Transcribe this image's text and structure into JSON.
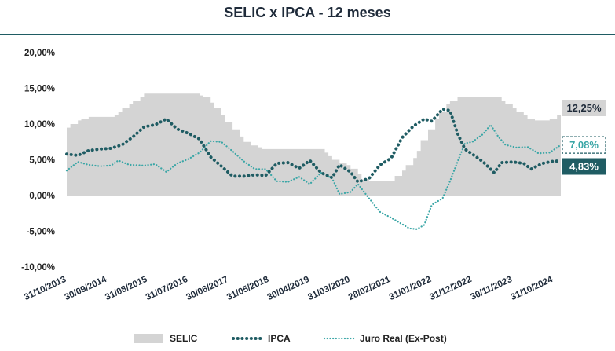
{
  "chart_data": {
    "type": "area",
    "title": "SELIC x IPCA - 12 meses",
    "xlabel": "",
    "ylabel": "",
    "ylim": [
      -10,
      20
    ],
    "ytick_labels": [
      "20,00%",
      "15,00%",
      "10,00%",
      "5,00%",
      "0,00%",
      "-5,00%",
      "-10,00%"
    ],
    "ytick_values": [
      20,
      15,
      10,
      5,
      0,
      -5,
      -10
    ],
    "x_range": [
      "2013-10-31",
      "2024-12-31"
    ],
    "xtick_labels": [
      "31/10/2013",
      "30/09/2014",
      "31/08/2015",
      "31/07/2016",
      "30/06/2017",
      "31/05/2018",
      "30/04/2019",
      "31/03/2020",
      "28/02/2021",
      "31/01/2022",
      "31/12/2022",
      "30/11/2023",
      "31/10/2024"
    ],
    "xtick_dates": [
      "2013-10-31",
      "2014-09-30",
      "2015-08-31",
      "2016-07-31",
      "2017-06-30",
      "2018-05-31",
      "2019-04-30",
      "2020-03-31",
      "2021-02-28",
      "2022-01-31",
      "2022-12-31",
      "2023-11-30",
      "2024-10-31"
    ],
    "grid": false,
    "legend_position": "bottom",
    "series": [
      {
        "name": "SELIC",
        "type": "area",
        "color": "#d4d4d4",
        "points": [
          [
            "2013-10-31",
            9.5
          ],
          [
            "2013-11-30",
            10.0
          ],
          [
            "2014-01-31",
            10.5
          ],
          [
            "2014-02-28",
            10.75
          ],
          [
            "2014-04-30",
            11.0
          ],
          [
            "2014-10-31",
            11.0
          ],
          [
            "2014-11-30",
            11.25
          ],
          [
            "2014-12-31",
            11.75
          ],
          [
            "2015-01-31",
            12.25
          ],
          [
            "2015-03-31",
            12.75
          ],
          [
            "2015-04-30",
            13.25
          ],
          [
            "2015-06-30",
            13.75
          ],
          [
            "2015-07-31",
            14.25
          ],
          [
            "2016-09-30",
            14.25
          ],
          [
            "2016-10-31",
            14.0
          ],
          [
            "2016-11-30",
            13.75
          ],
          [
            "2017-01-31",
            13.0
          ],
          [
            "2017-02-28",
            12.25
          ],
          [
            "2017-04-30",
            11.25
          ],
          [
            "2017-05-31",
            10.25
          ],
          [
            "2017-07-31",
            9.25
          ],
          [
            "2017-09-30",
            8.25
          ],
          [
            "2017-10-31",
            7.5
          ],
          [
            "2017-12-31",
            7.0
          ],
          [
            "2018-02-28",
            6.75
          ],
          [
            "2018-03-31",
            6.5
          ],
          [
            "2019-07-31",
            6.5
          ],
          [
            "2019-08-31",
            6.0
          ],
          [
            "2019-09-30",
            5.5
          ],
          [
            "2019-10-31",
            5.0
          ],
          [
            "2019-12-31",
            4.5
          ],
          [
            "2020-02-29",
            4.25
          ],
          [
            "2020-03-31",
            3.75
          ],
          [
            "2020-05-31",
            3.0
          ],
          [
            "2020-06-30",
            2.25
          ],
          [
            "2020-08-31",
            2.0
          ],
          [
            "2021-02-28",
            2.0
          ],
          [
            "2021-03-31",
            2.75
          ],
          [
            "2021-05-31",
            3.5
          ],
          [
            "2021-06-30",
            4.25
          ],
          [
            "2021-08-31",
            5.25
          ],
          [
            "2021-09-30",
            6.25
          ],
          [
            "2021-10-31",
            7.75
          ],
          [
            "2021-12-31",
            9.25
          ],
          [
            "2022-02-28",
            10.75
          ],
          [
            "2022-03-31",
            11.75
          ],
          [
            "2022-05-31",
            12.75
          ],
          [
            "2022-06-30",
            13.25
          ],
          [
            "2022-08-31",
            13.75
          ],
          [
            "2023-07-31",
            13.75
          ],
          [
            "2023-08-31",
            13.25
          ],
          [
            "2023-09-30",
            12.75
          ],
          [
            "2023-11-30",
            12.25
          ],
          [
            "2023-12-31",
            11.75
          ],
          [
            "2024-02-29",
            11.25
          ],
          [
            "2024-03-31",
            10.75
          ],
          [
            "2024-05-31",
            10.5
          ],
          [
            "2024-08-31",
            10.5
          ],
          [
            "2024-09-30",
            10.75
          ],
          [
            "2024-11-30",
            11.25
          ],
          [
            "2024-12-31",
            12.25
          ]
        ]
      },
      {
        "name": "IPCA",
        "type": "line",
        "style": "dotted-round",
        "color": "#1f5c63",
        "points": [
          [
            "2013-10-31",
            5.8
          ],
          [
            "2014-01-31",
            5.6
          ],
          [
            "2014-04-30",
            6.3
          ],
          [
            "2014-07-31",
            6.5
          ],
          [
            "2014-10-31",
            6.6
          ],
          [
            "2015-01-31",
            7.1
          ],
          [
            "2015-04-30",
            8.2
          ],
          [
            "2015-07-31",
            9.6
          ],
          [
            "2015-10-31",
            9.9
          ],
          [
            "2016-01-31",
            10.7
          ],
          [
            "2016-04-30",
            9.3
          ],
          [
            "2016-07-31",
            8.7
          ],
          [
            "2016-10-31",
            7.9
          ],
          [
            "2017-01-31",
            5.4
          ],
          [
            "2017-04-30",
            4.1
          ],
          [
            "2017-07-31",
            2.7
          ],
          [
            "2017-10-31",
            2.7
          ],
          [
            "2018-01-31",
            2.9
          ],
          [
            "2018-04-30",
            2.8
          ],
          [
            "2018-07-31",
            4.5
          ],
          [
            "2018-10-31",
            4.6
          ],
          [
            "2019-01-31",
            3.8
          ],
          [
            "2019-04-30",
            4.9
          ],
          [
            "2019-07-31",
            3.2
          ],
          [
            "2019-10-31",
            2.5
          ],
          [
            "2019-12-31",
            4.3
          ],
          [
            "2020-03-31",
            3.3
          ],
          [
            "2020-05-31",
            1.9
          ],
          [
            "2020-08-31",
            2.4
          ],
          [
            "2020-11-30",
            4.3
          ],
          [
            "2021-02-28",
            5.2
          ],
          [
            "2021-05-31",
            8.1
          ],
          [
            "2021-08-31",
            9.7
          ],
          [
            "2021-11-30",
            10.7
          ],
          [
            "2022-01-31",
            10.4
          ],
          [
            "2022-04-30",
            12.1
          ],
          [
            "2022-06-30",
            11.9
          ],
          [
            "2022-08-31",
            8.7
          ],
          [
            "2022-10-31",
            6.5
          ],
          [
            "2022-12-31",
            5.8
          ],
          [
            "2023-03-31",
            4.7
          ],
          [
            "2023-06-30",
            3.2
          ],
          [
            "2023-08-31",
            4.6
          ],
          [
            "2023-11-30",
            4.7
          ],
          [
            "2024-02-29",
            4.5
          ],
          [
            "2024-04-30",
            3.7
          ],
          [
            "2024-07-31",
            4.5
          ],
          [
            "2024-10-31",
            4.8
          ],
          [
            "2024-12-31",
            4.83
          ]
        ]
      },
      {
        "name": "Juro Real (Ex-Post)",
        "type": "line",
        "style": "dotted-fine",
        "color": "#3aa6a6",
        "points": [
          [
            "2013-10-31",
            3.5
          ],
          [
            "2014-01-31",
            4.7
          ],
          [
            "2014-04-30",
            4.3
          ],
          [
            "2014-07-31",
            4.1
          ],
          [
            "2014-10-31",
            4.2
          ],
          [
            "2014-12-31",
            4.9
          ],
          [
            "2015-03-31",
            4.3
          ],
          [
            "2015-07-31",
            4.2
          ],
          [
            "2015-10-31",
            4.4
          ],
          [
            "2016-01-31",
            3.3
          ],
          [
            "2016-04-30",
            4.5
          ],
          [
            "2016-07-31",
            5.1
          ],
          [
            "2016-10-31",
            6.0
          ],
          [
            "2017-01-31",
            7.6
          ],
          [
            "2017-04-30",
            7.5
          ],
          [
            "2017-07-31",
            6.2
          ],
          [
            "2017-10-31",
            4.8
          ],
          [
            "2018-01-31",
            3.7
          ],
          [
            "2018-04-30",
            3.7
          ],
          [
            "2018-07-31",
            2.0
          ],
          [
            "2018-10-31",
            1.9
          ],
          [
            "2019-01-31",
            2.6
          ],
          [
            "2019-04-30",
            1.6
          ],
          [
            "2019-07-31",
            3.2
          ],
          [
            "2019-10-31",
            2.4
          ],
          [
            "2019-12-31",
            0.2
          ],
          [
            "2020-03-31",
            0.5
          ],
          [
            "2020-05-31",
            1.6
          ],
          [
            "2020-08-31",
            -0.4
          ],
          [
            "2020-11-30",
            -2.3
          ],
          [
            "2021-02-28",
            -3.1
          ],
          [
            "2021-05-31",
            -4.0
          ],
          [
            "2021-07-31",
            -4.6
          ],
          [
            "2021-09-30",
            -4.7
          ],
          [
            "2021-11-30",
            -4.1
          ],
          [
            "2022-01-31",
            -1.3
          ],
          [
            "2022-04-30",
            -0.4
          ],
          [
            "2022-06-30",
            2.0
          ],
          [
            "2022-08-31",
            4.7
          ],
          [
            "2022-10-31",
            7.3
          ],
          [
            "2022-12-31",
            7.5
          ],
          [
            "2023-03-31",
            8.6
          ],
          [
            "2023-05-31",
            9.9
          ],
          [
            "2023-07-31",
            8.3
          ],
          [
            "2023-09-30",
            7.1
          ],
          [
            "2023-12-31",
            6.7
          ],
          [
            "2024-03-31",
            6.8
          ],
          [
            "2024-06-30",
            5.9
          ],
          [
            "2024-09-30",
            6.0
          ],
          [
            "2024-12-31",
            7.08
          ]
        ]
      }
    ],
    "end_labels": [
      {
        "series": "SELIC",
        "text": "12,25%",
        "value": 12.25
      },
      {
        "series": "Juro Real (Ex-Post)",
        "text": "7,08%",
        "value": 7.08
      },
      {
        "series": "IPCA",
        "text": "4,83%",
        "value": 4.83
      }
    ]
  }
}
